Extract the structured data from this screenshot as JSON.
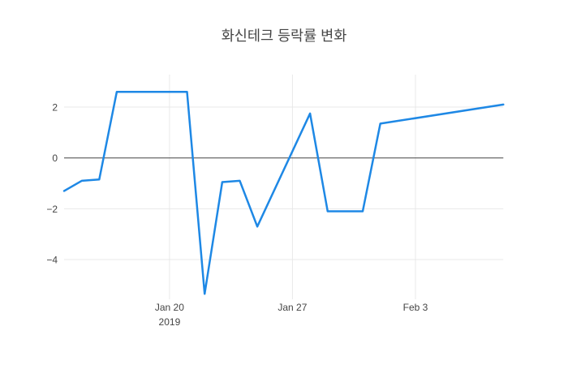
{
  "chart_data": {
    "type": "line",
    "title": "화신테크 등락률 변화",
    "x": [
      "2019-01-14",
      "2019-01-15",
      "2019-01-16",
      "2019-01-17",
      "2019-01-18",
      "2019-01-21",
      "2019-01-22",
      "2019-01-23",
      "2019-01-24",
      "2019-01-25",
      "2019-01-28",
      "2019-01-29",
      "2019-01-30",
      "2019-01-31",
      "2019-02-01",
      "2019-02-08"
    ],
    "values": [
      -1.3,
      -0.9,
      -0.85,
      2.6,
      2.6,
      2.6,
      -5.35,
      -0.95,
      -0.9,
      -2.7,
      1.75,
      -2.1,
      -2.1,
      -2.1,
      1.35,
      2.1
    ],
    "xlabel": "",
    "ylabel": "",
    "yticks": [
      2,
      0,
      -2,
      -4
    ],
    "xticks": [
      {
        "date": "2019-01-20",
        "label": "Jan 20",
        "sublabel": "2019"
      },
      {
        "date": "2019-01-27",
        "label": "Jan 27",
        "sublabel": ""
      },
      {
        "date": "2019-02-03",
        "label": "Feb 3",
        "sublabel": ""
      }
    ],
    "ylim": [
      -5.6,
      3.3
    ],
    "grid": true,
    "zeroline": true,
    "legend_position": "none",
    "line_color": "#1e88e5",
    "grid_color": "#e8e8e8",
    "zeroline_color": "#444444",
    "text_color": "#444444",
    "background_color": "#ffffff"
  }
}
